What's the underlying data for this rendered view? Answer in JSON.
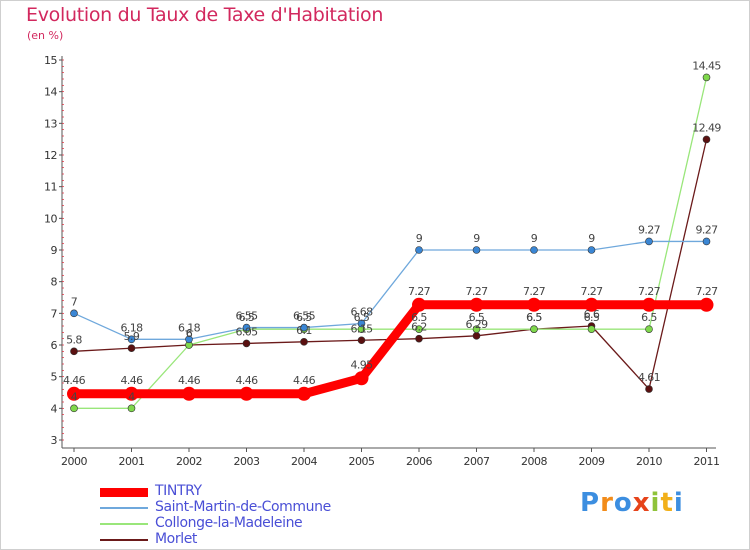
{
  "chart_data": {
    "type": "line",
    "title": "Evolution du Taux de Taxe d'Habitation",
    "ylabel": "(en %)",
    "xlabel": "",
    "x": [
      2000,
      2001,
      2002,
      2003,
      2004,
      2005,
      2006,
      2007,
      2008,
      2009,
      2010,
      2011
    ],
    "y_ticks": [
      3,
      4,
      5,
      6,
      7,
      8,
      9,
      10,
      11,
      12,
      13,
      14,
      15
    ],
    "ylim": [
      3,
      15
    ],
    "grid": false,
    "legend_position": "bottom-left",
    "series": [
      {
        "name": "TINTRY",
        "color": "#ff0000",
        "values": [
          4.46,
          4.46,
          4.46,
          4.46,
          4.46,
          4.95,
          7.27,
          7.27,
          7.27,
          7.27,
          7.27,
          7.27
        ],
        "labels": [
          "4.46",
          "4.46",
          "4.46",
          "4.46",
          "4.46",
          "4.95",
          "7.27",
          "7.27",
          "7.27",
          "7.27",
          "7.27",
          "7.27"
        ]
      },
      {
        "name": "Saint-Martin-de-Commune",
        "color": "#6fa8dc",
        "values": [
          7,
          6.18,
          6.18,
          6.55,
          6.55,
          6.68,
          9,
          9,
          9,
          9,
          9.27,
          9.27
        ],
        "labels": [
          "7",
          "6.18",
          "6.18",
          "6.55",
          "6.55",
          "6.68",
          "9",
          "9",
          "9",
          "9",
          "9.27",
          "9.27"
        ]
      },
      {
        "name": "Collonge-la-Madeleine",
        "color": "#99e67a",
        "values": [
          4,
          4,
          6,
          6.5,
          6.5,
          6.5,
          6.5,
          6.5,
          6.5,
          6.5,
          6.5,
          14.45
        ],
        "labels": [
          "4",
          "4",
          "6",
          "6.5",
          "6.5",
          "6.5",
          "6.5",
          "6.5",
          "6.5",
          "6.5",
          "6.5",
          "14.45"
        ]
      },
      {
        "name": "Morlet",
        "color": "#6b1a1a",
        "values": [
          5.8,
          5.9,
          6,
          6.05,
          6.1,
          6.15,
          6.2,
          6.29,
          6.5,
          6.6,
          4.61,
          12.49
        ],
        "labels": [
          "5.8",
          "5.9",
          "6",
          "6.05",
          "6.1",
          "6.15",
          "6.2",
          "6.29",
          "6.5",
          "6.6",
          "4.61",
          "12.49"
        ]
      }
    ]
  },
  "brand": {
    "logo_text": "Proxiti",
    "logo_colors": [
      "#3c8ee0",
      "#f28c1a",
      "#3c8ee0",
      "#e6431a",
      "#8fc33a",
      "#f2b01a",
      "#3c8ee0"
    ]
  }
}
